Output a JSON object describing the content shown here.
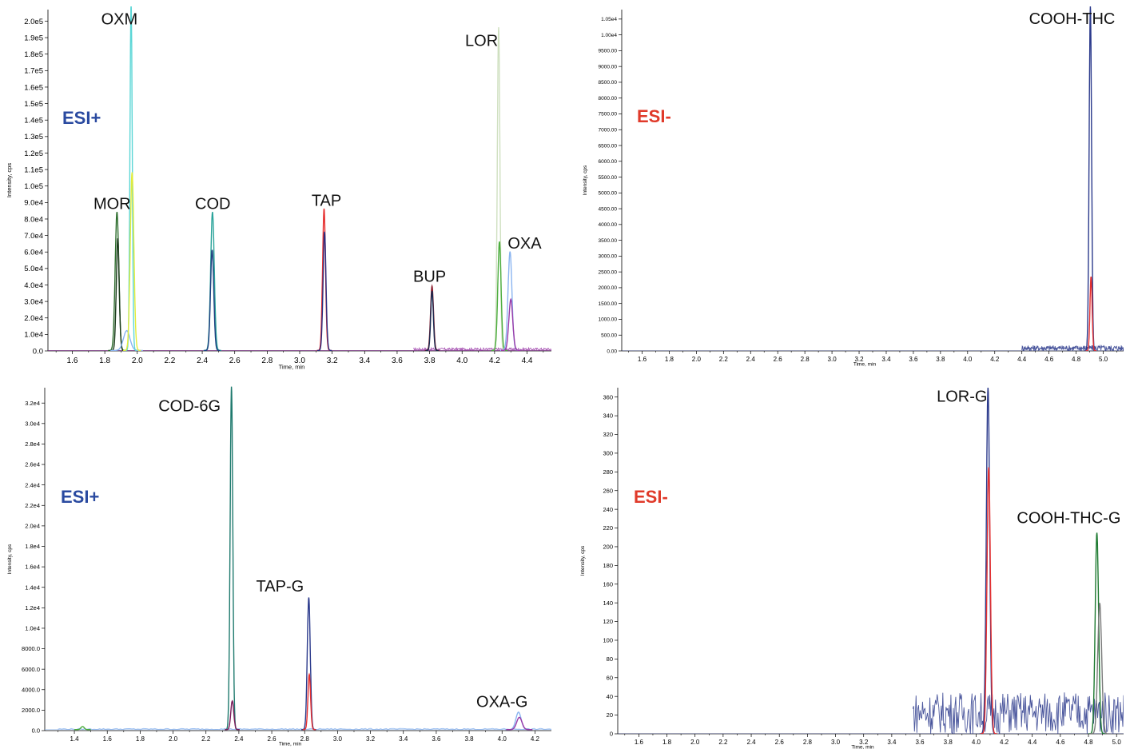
{
  "chart_data": [
    {
      "type": "line",
      "panel": "top-left",
      "xlabel": "Time, min",
      "ylabel": "Intensity, cps",
      "xlim": [
        1.45,
        4.55
      ],
      "ylim": [
        0,
        207000
      ],
      "xticks": [
        1.6,
        1.8,
        2.0,
        2.2,
        2.4,
        2.6,
        2.8,
        3.0,
        3.2,
        3.4,
        3.6,
        3.8,
        4.0,
        4.2,
        4.4
      ],
      "xtick_labels": [
        "1.6",
        "1.8",
        "2.0",
        "2.2",
        "2.4",
        "2.6",
        "2.8",
        "3.0",
        "3.2",
        "3.4",
        "3.6",
        "3.8",
        "4.0",
        "4.2",
        "4.4"
      ],
      "yticks": [
        0,
        10000,
        20000,
        30000,
        40000,
        50000,
        60000,
        70000,
        80000,
        90000,
        100000,
        110000,
        120000,
        130000,
        140000,
        150000,
        160000,
        170000,
        180000,
        190000,
        200000
      ],
      "ytick_labels": [
        "0.0",
        "1.0e4",
        "2.0e4",
        "3.0e4",
        "4.0e4",
        "5.0e4",
        "6.0e4",
        "7.0e4",
        "8.0e4",
        "9.0e4",
        "1.0e5",
        "1.1e5",
        "1.2e5",
        "1.3e5",
        "1.4e5",
        "1.5e5",
        "1.6e5",
        "1.7e5",
        "1.8e5",
        "1.9e5",
        "2.0e5"
      ],
      "mode_label": "ESI+",
      "mode_color": "#2a4aa0",
      "baseline": 300,
      "peaks": [
        {
          "color": "#2e6e2e",
          "center": 1.875,
          "width": 0.011,
          "height": 84000
        },
        {
          "color": "#1a3a1a",
          "center": 1.88,
          "width": 0.009,
          "height": 68000
        },
        {
          "color": "#8ab4f0",
          "center": 1.935,
          "width": 0.02,
          "height": 12000
        },
        {
          "color": "#5bd6d6",
          "center": 1.962,
          "width": 0.007,
          "height": 210000
        },
        {
          "color": "#e3ec3a",
          "center": 1.968,
          "width": 0.011,
          "height": 108000
        },
        {
          "color": "#2aa39a",
          "center": 2.463,
          "width": 0.011,
          "height": 84000
        },
        {
          "color": "#1e3f80",
          "center": 2.461,
          "width": 0.01,
          "height": 61000
        },
        {
          "color": "#e63030",
          "center": 3.15,
          "width": 0.009,
          "height": 86000
        },
        {
          "color": "#2b2d80",
          "center": 3.153,
          "width": 0.009,
          "height": 72000
        },
        {
          "color": "#8a1a2a",
          "center": 3.815,
          "width": 0.009,
          "height": 39000
        },
        {
          "color": "#1a2a50",
          "center": 3.815,
          "width": 0.008,
          "height": 36000
        },
        {
          "color": "#cfe0c0",
          "center": 4.225,
          "width": 0.008,
          "height": 196000
        },
        {
          "color": "#4cad3e",
          "center": 4.23,
          "width": 0.01,
          "height": 66000
        },
        {
          "color": "#8ab4f0",
          "center": 4.295,
          "width": 0.012,
          "height": 60000
        },
        {
          "color": "#9a3aa8",
          "center": 4.3,
          "width": 0.012,
          "height": 31000
        }
      ],
      "noise_color": "#9a3aa8",
      "noise_from": 3.7,
      "noise_level": 1500,
      "annotations": [
        {
          "text": "OXM",
          "x": 1.89,
          "y": 198000
        },
        {
          "text": "MOR",
          "x": 1.845,
          "y": 86000
        },
        {
          "text": "COD",
          "x": 2.465,
          "y": 86000
        },
        {
          "text": "TAP",
          "x": 3.165,
          "y": 88000
        },
        {
          "text": "BUP",
          "x": 3.8,
          "y": 42000
        },
        {
          "text": "LOR",
          "x": 4.12,
          "y": 185000
        },
        {
          "text": "OXA",
          "x": 4.385,
          "y": 62000
        }
      ]
    },
    {
      "type": "line",
      "panel": "top-right",
      "xlabel": "Time, min",
      "ylabel": "Intensity, cps",
      "xlim": [
        1.45,
        5.15
      ],
      "ylim": [
        0,
        10800
      ],
      "xticks": [
        1.6,
        1.8,
        2.0,
        2.2,
        2.4,
        2.6,
        2.8,
        3.0,
        3.2,
        3.4,
        3.6,
        3.8,
        4.0,
        4.2,
        4.4,
        4.6,
        4.8,
        5.0
      ],
      "xtick_labels": [
        "1.6",
        "1.8",
        "2.0",
        "2.2",
        "2.4",
        "2.6",
        "2.8",
        "3.0",
        "3.2",
        "3.4",
        "3.6",
        "3.8",
        "4.0",
        "4.2",
        "4.4",
        "4.6",
        "4.8",
        "5.0"
      ],
      "yticks": [
        0,
        500,
        1000,
        1500,
        2000,
        2500,
        3000,
        3500,
        4000,
        4500,
        5000,
        5500,
        6000,
        6500,
        7000,
        7500,
        8000,
        8500,
        9000,
        9500,
        10000,
        10500
      ],
      "ytick_labels": [
        "0.00",
        "500.00",
        "1000.00",
        "1500.00",
        "2000.00",
        "2500.00",
        "3000.00",
        "3500.00",
        "4000.00",
        "4500.00",
        "5000.00",
        "5500.00",
        "6000.00",
        "6500.00",
        "7000.00",
        "7500.00",
        "8000.00",
        "8500.00",
        "9000.00",
        "9500.00",
        "1.00e4",
        "1.05e4"
      ],
      "mode_label": "ESI-",
      "mode_color": "#e03a2a",
      "baseline": 0,
      "peaks": [
        {
          "color": "#2b3a8c",
          "center": 4.905,
          "width": 0.009,
          "height": 10900
        },
        {
          "color": "#e63030",
          "center": 4.91,
          "width": 0.008,
          "height": 2350
        }
      ],
      "noise_color": "#2b3a8c",
      "noise_from": 4.4,
      "noise_level": 180,
      "annotations": [
        {
          "text": "COOH-THC",
          "x": 4.77,
          "y": 10350
        }
      ]
    },
    {
      "type": "line",
      "panel": "bottom-left",
      "xlabel": "Time, min",
      "ylabel": "Intensity, cps",
      "xlim": [
        1.22,
        4.3
      ],
      "ylim": [
        0,
        33500
      ],
      "xticks": [
        1.4,
        1.6,
        1.8,
        2.0,
        2.2,
        2.4,
        2.6,
        2.8,
        3.0,
        3.2,
        3.4,
        3.6,
        3.8,
        4.0,
        4.2
      ],
      "xtick_labels": [
        "1.4",
        "1.6",
        "1.8",
        "2.0",
        "2.2",
        "2.4",
        "2.6",
        "2.8",
        "3.0",
        "3.2",
        "3.4",
        "3.6",
        "3.8",
        "4.0",
        "4.2"
      ],
      "yticks": [
        0,
        2000,
        4000,
        6000,
        8000,
        10000,
        12000,
        14000,
        16000,
        18000,
        20000,
        22000,
        24000,
        26000,
        28000,
        30000,
        32000
      ],
      "ytick_labels": [
        "0.0",
        "2000.0",
        "4000.0",
        "6000.0",
        "8000.0",
        "1.0e4",
        "1.2e4",
        "1.4e4",
        "1.6e4",
        "1.8e4",
        "2.0e4",
        "2.2e4",
        "2.4e4",
        "2.6e4",
        "2.8e4",
        "3.0e4",
        "3.2e4"
      ],
      "mode_label": "ESI+",
      "mode_color": "#2a4aa0",
      "baseline": 100,
      "peaks": [
        {
          "color": "#1f7a6e",
          "center": 2.355,
          "width": 0.008,
          "height": 33500
        },
        {
          "color": "#7a1a5a",
          "center": 2.36,
          "width": 0.009,
          "height": 2800
        },
        {
          "color": "#2b3a8c",
          "center": 2.825,
          "width": 0.009,
          "height": 12900
        },
        {
          "color": "#e63030",
          "center": 2.828,
          "width": 0.008,
          "height": 5400
        },
        {
          "color": "#8ab4f0",
          "center": 4.1,
          "width": 0.016,
          "height": 1700
        },
        {
          "color": "#9a3aa8",
          "center": 4.105,
          "width": 0.016,
          "height": 1200
        },
        {
          "color": "#4cad3e",
          "center": 1.45,
          "width": 0.01,
          "height": 300
        }
      ],
      "noise_color": "#8ab4f0",
      "noise_from": 1.3,
      "noise_level": 120,
      "annotations": [
        {
          "text": "COD-6G",
          "x": 2.1,
          "y": 31200
        },
        {
          "text": "TAP-G",
          "x": 2.65,
          "y": 13600
        },
        {
          "text": "OXA-G",
          "x": 4.0,
          "y": 2300
        }
      ]
    },
    {
      "type": "line",
      "panel": "bottom-right",
      "xlabel": "Time, min",
      "ylabel": "Intensity, cps",
      "xlim": [
        1.45,
        5.05
      ],
      "ylim": [
        0,
        370
      ],
      "xticks": [
        1.6,
        1.8,
        2.0,
        2.2,
        2.4,
        2.6,
        2.8,
        3.0,
        3.2,
        3.4,
        3.6,
        3.8,
        4.0,
        4.2,
        4.4,
        4.6,
        4.8,
        5.0
      ],
      "xtick_labels": [
        "1.6",
        "1.8",
        "2.0",
        "2.2",
        "2.4",
        "2.6",
        "2.8",
        "3.0",
        "3.2",
        "3.4",
        "3.6",
        "3.8",
        "4.0",
        "4.2",
        "4.4",
        "4.6",
        "4.8",
        "5.0"
      ],
      "yticks": [
        0,
        20,
        40,
        60,
        80,
        100,
        120,
        140,
        160,
        180,
        200,
        220,
        240,
        260,
        280,
        300,
        320,
        340,
        360
      ],
      "ytick_labels": [
        "0",
        "20",
        "40",
        "60",
        "80",
        "100",
        "120",
        "140",
        "160",
        "180",
        "200",
        "220",
        "240",
        "260",
        "280",
        "300",
        "320",
        "340",
        "360"
      ],
      "mode_label": "ESI-",
      "mode_color": "#e03a2a",
      "baseline": 0,
      "peaks": [
        {
          "color": "#2b3a8c",
          "center": 4.085,
          "width": 0.012,
          "height": 370
        },
        {
          "color": "#e63030",
          "center": 4.09,
          "width": 0.012,
          "height": 285
        },
        {
          "color": "#1d7a30",
          "center": 4.86,
          "width": 0.012,
          "height": 215
        },
        {
          "color": "#7a7a7a",
          "center": 4.88,
          "width": 0.014,
          "height": 140
        }
      ],
      "noise_color": "#2b3a8c",
      "noise_from": 3.55,
      "noise_level": 45,
      "annotations": [
        {
          "text": "LOR-G",
          "x": 3.9,
          "y": 355
        },
        {
          "text": "COOH-THC-G",
          "x": 4.66,
          "y": 225
        }
      ]
    }
  ]
}
